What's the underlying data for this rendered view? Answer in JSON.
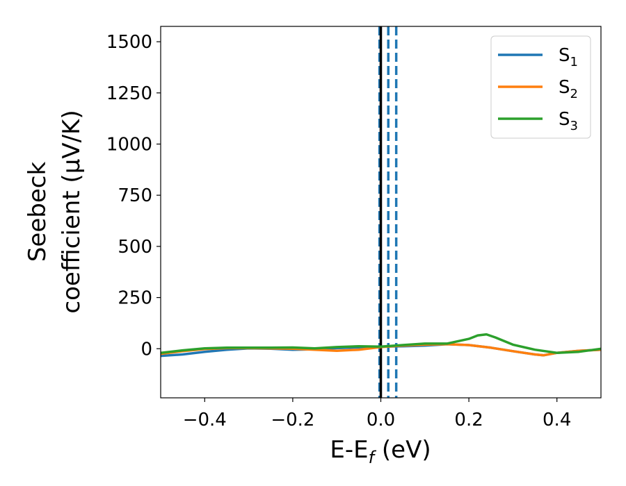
{
  "chart_data": {
    "type": "line",
    "title": "",
    "xlabel": {
      "main": "E-E",
      "sub": "f",
      "unit": " (eV)"
    },
    "ylabel": {
      "line1": "Seebeck",
      "line2": "coefficient  (μV/K)"
    },
    "xlim": [
      -0.5,
      0.5
    ],
    "ylim": [
      -240,
      1575
    ],
    "x_ticks": [
      -0.4,
      -0.2,
      0.0,
      0.2,
      0.4
    ],
    "x_tick_labels": [
      "−0.4",
      "−0.2",
      "0.0",
      "0.2",
      "0.4"
    ],
    "y_ticks": [
      0,
      250,
      500,
      750,
      1000,
      1250,
      1500
    ],
    "y_tick_labels": [
      "0",
      "250",
      "500",
      "750",
      "1000",
      "1250",
      "1500"
    ],
    "grid": false,
    "legend_position": "top-right",
    "vertical_lines": [
      {
        "x": -0.003,
        "color": "#1f77b4",
        "style": "dashed"
      },
      {
        "x": 0.017,
        "color": "#1f77b4",
        "style": "dashed"
      },
      {
        "x": 0.035,
        "color": "#1f77b4",
        "style": "dashed"
      },
      {
        "x": 0.0,
        "color": "#000000",
        "style": "solid"
      }
    ],
    "series": [
      {
        "name": "S",
        "sub": "1",
        "color": "#1f77b4",
        "x": [
          -0.5,
          -0.45,
          -0.4,
          -0.35,
          -0.3,
          -0.25,
          -0.2,
          -0.15,
          -0.1,
          -0.05,
          0.0,
          0.05,
          0.1,
          0.15,
          0.2,
          0.25,
          0.3,
          0.35,
          0.37,
          0.4,
          0.45,
          0.5
        ],
        "values": [
          -35,
          -28,
          -15,
          -5,
          2,
          0,
          -5,
          -3,
          3,
          7,
          10,
          12,
          15,
          22,
          18,
          5,
          -12,
          -28,
          -32,
          -20,
          -10,
          -5
        ]
      },
      {
        "name": "S",
        "sub": "2",
        "color": "#ff7f0e",
        "x": [
          -0.5,
          -0.45,
          -0.4,
          -0.35,
          -0.3,
          -0.25,
          -0.2,
          -0.15,
          -0.1,
          -0.05,
          0.0,
          0.05,
          0.1,
          0.15,
          0.2,
          0.25,
          0.3,
          0.35,
          0.37,
          0.4,
          0.45,
          0.5
        ],
        "values": [
          -25,
          -12,
          -2,
          3,
          3,
          2,
          0,
          -5,
          -10,
          -5,
          8,
          15,
          20,
          22,
          18,
          5,
          -12,
          -28,
          -32,
          -20,
          -10,
          -5
        ]
      },
      {
        "name": "S",
        "sub": "3",
        "color": "#2ca02c",
        "x": [
          -0.5,
          -0.45,
          -0.4,
          -0.35,
          -0.3,
          -0.25,
          -0.2,
          -0.15,
          -0.1,
          -0.05,
          0.0,
          0.05,
          0.1,
          0.15,
          0.2,
          0.22,
          0.24,
          0.26,
          0.3,
          0.35,
          0.4,
          0.45,
          0.5
        ],
        "values": [
          -20,
          -8,
          2,
          5,
          5,
          5,
          6,
          2,
          8,
          12,
          10,
          18,
          25,
          25,
          48,
          65,
          70,
          55,
          20,
          -5,
          -20,
          -15,
          0
        ]
      }
    ]
  }
}
